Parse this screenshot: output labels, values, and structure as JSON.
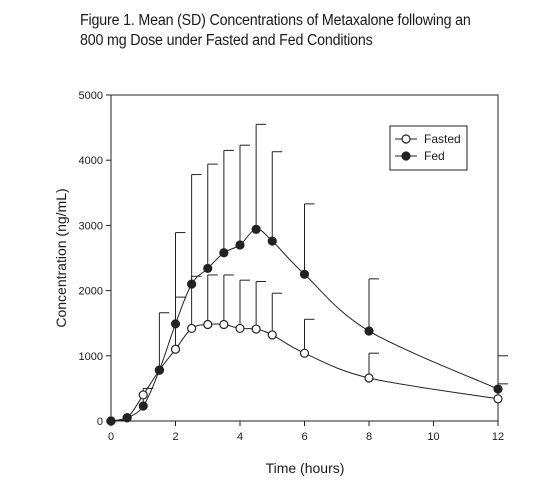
{
  "chart_data": {
    "type": "line",
    "title_line1": "Figure 1.  Mean (SD) Concentrations of Metaxalone following an",
    "title_line2": "800 mg Dose under Fasted and Fed Conditions",
    "xlabel": "Time (hours)",
    "ylabel": "Concentration (ng/mL)",
    "xlim": [
      0,
      12
    ],
    "ylim": [
      0,
      5000
    ],
    "x_ticks": [
      0,
      2,
      4,
      6,
      8,
      10,
      12
    ],
    "y_ticks": [
      0,
      1000,
      2000,
      3000,
      4000,
      5000
    ],
    "grid": false,
    "legend_position": "top-right",
    "series": [
      {
        "name": "Fasted",
        "marker": "open-circle",
        "x": [
          0,
          0.5,
          1,
          1.5,
          2,
          2.5,
          3,
          3.5,
          4,
          4.5,
          5,
          6,
          8,
          12
        ],
        "y": [
          0,
          50,
          400,
          780,
          1100,
          1420,
          1480,
          1480,
          1420,
          1410,
          1320,
          1040,
          660,
          340
        ],
        "sd": [
          0,
          0,
          0,
          0,
          800,
          800,
          760,
          760,
          740,
          730,
          640,
          520,
          380,
          230
        ]
      },
      {
        "name": "Fed",
        "marker": "filled-circle",
        "x": [
          0,
          0.5,
          1,
          1.5,
          2,
          2.5,
          3,
          3.5,
          4,
          4.5,
          5,
          6,
          8,
          12
        ],
        "y": [
          0,
          50,
          230,
          780,
          1490,
          2100,
          2340,
          2580,
          2700,
          2940,
          2760,
          2250,
          1380,
          490
        ],
        "sd": [
          0,
          0,
          270,
          880,
          1400,
          1680,
          1600,
          1570,
          1530,
          1610,
          1370,
          1080,
          800,
          510
        ]
      }
    ]
  }
}
